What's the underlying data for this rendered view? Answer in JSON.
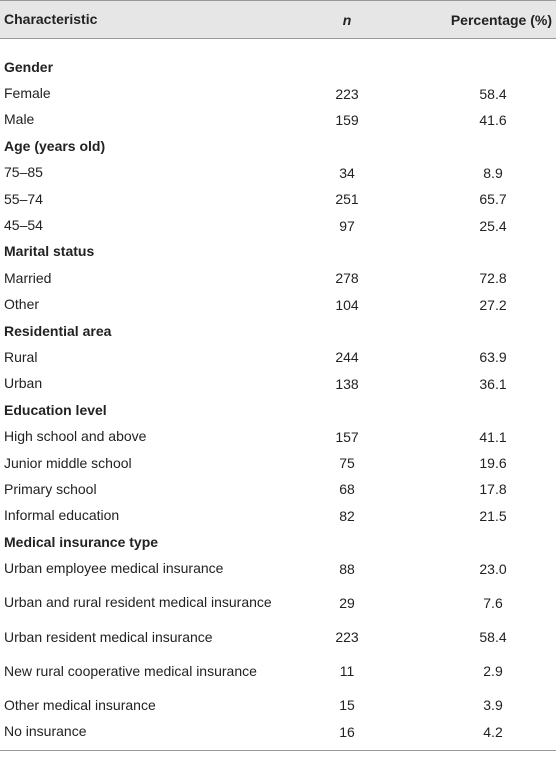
{
  "table": {
    "header": [
      "Characteristic",
      "n",
      "Percentage (%)"
    ],
    "sections": [
      {
        "title": "Gender",
        "rows": [
          [
            "Female",
            "223",
            "58.4"
          ],
          [
            "Male",
            "159",
            "41.6"
          ]
        ]
      },
      {
        "title": "Age (years old)",
        "rows": [
          [
            "75–85",
            "34",
            "8.9"
          ],
          [
            "55–74",
            "251",
            "65.7"
          ],
          [
            "45–54",
            "97",
            "25.4"
          ]
        ]
      },
      {
        "title": "Marital status",
        "rows": [
          [
            "Married",
            "278",
            "72.8"
          ],
          [
            "Other",
            "104",
            "27.2"
          ]
        ]
      },
      {
        "title": "Residential area",
        "rows": [
          [
            "Rural",
            "244",
            "63.9"
          ],
          [
            "Urban",
            "138",
            "36.1"
          ]
        ]
      },
      {
        "title": "Education level",
        "rows": [
          [
            "High school and above",
            "157",
            "41.1"
          ],
          [
            "Junior middle school",
            "75",
            "19.6"
          ],
          [
            "Primary school",
            "68",
            "17.8"
          ],
          [
            "Informal education",
            "82",
            "21.5"
          ]
        ]
      },
      {
        "title": "Medical insurance type",
        "rows": [
          [
            "Urban employee medical insurance",
            "88",
            "23.0"
          ],
          [
            "Urban and rural resident medical insurance",
            "29",
            "7.6"
          ],
          [
            "Urban resident medical insurance",
            "223",
            "58.4"
          ],
          [
            "New rural cooperative medical insurance",
            "11",
            "2.9"
          ],
          [
            "Other medical insurance",
            "15",
            "3.9"
          ],
          [
            "No insurance",
            "16",
            "4.2"
          ]
        ]
      }
    ]
  }
}
